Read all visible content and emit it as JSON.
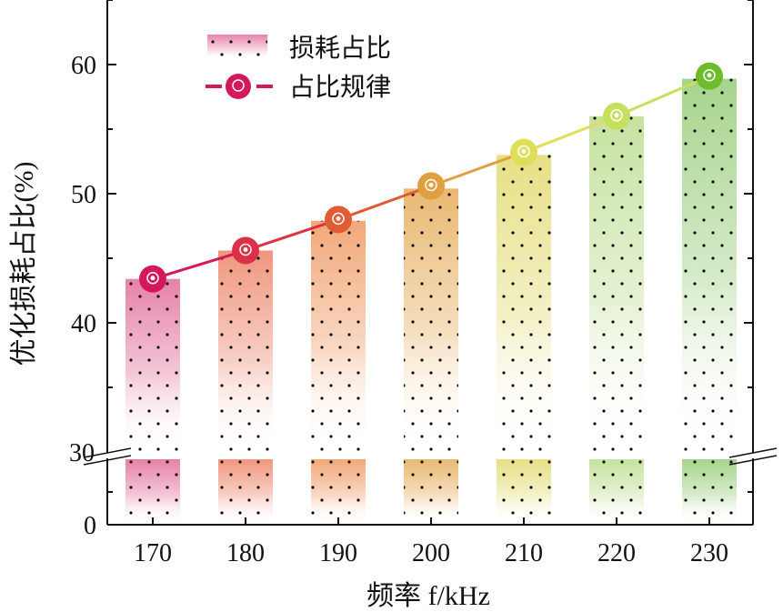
{
  "chart_data": {
    "type": "bar",
    "xlabel": "频率 f/kHz",
    "ylabel": "优化损耗占比(%)",
    "categories": [
      "170",
      "180",
      "190",
      "200",
      "210",
      "220",
      "230"
    ],
    "series": [
      {
        "name": "损耗占比",
        "type": "bar",
        "values": [
          43.4,
          45.6,
          47.9,
          50.4,
          53.0,
          56.0,
          58.9
        ]
      },
      {
        "name": "占比规律",
        "type": "line",
        "values": [
          43.4,
          45.6,
          48.0,
          50.6,
          53.2,
          56.0,
          59.1
        ]
      }
    ],
    "ylim": [
      0,
      65
    ],
    "axis_break": [
      0,
      30
    ],
    "yticks": [
      "0",
      "30",
      "40",
      "50",
      "60"
    ],
    "grid": false,
    "legend_position": "top-left",
    "colors": [
      "#e682a8",
      "#f0967e",
      "#f2a878",
      "#e9b872",
      "#e6e084",
      "#c6e2a0",
      "#a6d48c"
    ],
    "marker_colors": [
      "#d4185c",
      "#dc3048",
      "#e05c34",
      "#dea040",
      "#dede5a",
      "#c4e05c",
      "#6cbc2c"
    ]
  }
}
